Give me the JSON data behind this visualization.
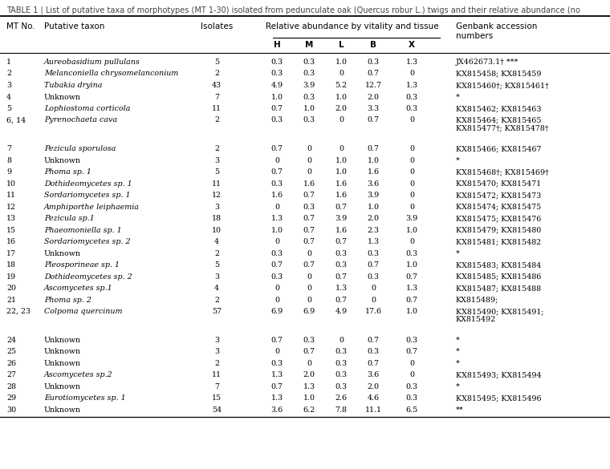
{
  "title": "TABLE 1 | List of putative taxa of morphotypes (MT 1-30) isolated from pedunculate oak (Quercus robur L.) twigs and their relative abundance (no",
  "col_headers_row1": [
    "MT No.",
    "Putative taxon",
    "Isolates",
    "Relative abundance by vitality and tissue",
    "Genbank accession\nnumbers"
  ],
  "col_headers_row2": [
    "H",
    "M",
    "L",
    "B",
    "X"
  ],
  "rows": [
    [
      "1",
      "Aureobasidium pullulans",
      "5",
      "0.3",
      "0.3",
      "1.0",
      "0.3",
      "1.3",
      "JX462673.1† ***"
    ],
    [
      "2",
      "Melanconiella chrysomelanconium",
      "2",
      "0.3",
      "0.3",
      "0",
      "0.7",
      "0",
      "KX815458; KX815459"
    ],
    [
      "3",
      "Tubakia dryina",
      "43",
      "4.9",
      "3.9",
      "5.2",
      "12.7",
      "1.3",
      "KX815460†; KX815461†"
    ],
    [
      "4",
      "Unknown",
      "7",
      "1.0",
      "0.3",
      "1.0",
      "2.0",
      "0.3",
      "*"
    ],
    [
      "5",
      "Lophiostoma corticola",
      "11",
      "0.7",
      "1.0",
      "2.0",
      "3.3",
      "0.3",
      "KX815462; KX815463"
    ],
    [
      "6, 14",
      "Pyrenochaeta cava",
      "2",
      "0.3",
      "0.3",
      "0",
      "0.7",
      "0",
      "KX815464; KX815465\nKX815477†; KX815478†"
    ],
    [
      "7",
      "Pezicula sporulosa",
      "2",
      "0.7",
      "0",
      "0",
      "0.7",
      "0",
      "KX815466; KX815467"
    ],
    [
      "8",
      "Unknown",
      "3",
      "0",
      "0",
      "1.0",
      "1.0",
      "0",
      "*"
    ],
    [
      "9",
      "Phoma sp. 1",
      "5",
      "0.7",
      "0",
      "1.0",
      "1.6",
      "0",
      "KX815468†; KX815469†"
    ],
    [
      "10",
      "Dothideomycetes sp. 1",
      "11",
      "0.3",
      "1.6",
      "1.6",
      "3.6",
      "0",
      "KX815470; KX815471"
    ],
    [
      "11",
      "Sordariomycetes sp. 1",
      "12",
      "1.6",
      "0.7",
      "1.6",
      "3.9",
      "0",
      "KX815472; KX815473"
    ],
    [
      "12",
      "Amphiporthe leiphaemia",
      "3",
      "0",
      "0.3",
      "0.7",
      "1.0",
      "0",
      "KX815474; KX815475"
    ],
    [
      "13",
      "Pezicula sp.1",
      "18",
      "1.3",
      "0.7",
      "3.9",
      "2.0",
      "3.9",
      "KX815475; KX815476"
    ],
    [
      "15",
      "Phaeomoniella sp. 1",
      "10",
      "1.0",
      "0.7",
      "1.6",
      "2.3",
      "1.0",
      "KX815479; KX815480"
    ],
    [
      "16",
      "Sordariomycetes sp. 2",
      "4",
      "0",
      "0.7",
      "0.7",
      "1.3",
      "0",
      "KX815481; KX815482"
    ],
    [
      "17",
      "Unknown",
      "2",
      "0.3",
      "0",
      "0.3",
      "0.3",
      "0.3",
      "*"
    ],
    [
      "18",
      "Pleosporineae sp. 1",
      "5",
      "0.7",
      "0.7",
      "0.3",
      "0.7",
      "1.0",
      "KX815483; KX815484"
    ],
    [
      "19",
      "Dothideomycetes sp. 2",
      "3",
      "0.3",
      "0",
      "0.7",
      "0.3",
      "0.7",
      "KX815485; KX815486"
    ],
    [
      "20",
      "Ascomycetes sp.1",
      "4",
      "0",
      "0",
      "1.3",
      "0",
      "1.3",
      "KX815487; KX815488"
    ],
    [
      "21",
      "Phoma sp. 2",
      "2",
      "0",
      "0",
      "0.7",
      "0",
      "0.7",
      "KX815489;"
    ],
    [
      "22, 23",
      "Colpoma quercinum",
      "57",
      "6.9",
      "6.9",
      "4.9",
      "17.6",
      "1.0",
      "KX815490; KX815491;\nKX815492"
    ],
    [
      "24",
      "Unknown",
      "3",
      "0.7",
      "0.3",
      "0",
      "0.7",
      "0.3",
      "*"
    ],
    [
      "25",
      "Unknown",
      "3",
      "0",
      "0.7",
      "0.3",
      "0.3",
      "0.7",
      "*"
    ],
    [
      "26",
      "Unknown",
      "2",
      "0.3",
      "0",
      "0.3",
      "0.7",
      "0",
      "*"
    ],
    [
      "27",
      "Ascomycetes sp.2",
      "11",
      "1.3",
      "2.0",
      "0.3",
      "3.6",
      "0",
      "KX815493; KX815494"
    ],
    [
      "28",
      "Unknown",
      "7",
      "0.7",
      "1.3",
      "0.3",
      "2.0",
      "0.3",
      "*"
    ],
    [
      "29",
      "Eurotiomycetes sp. 1",
      "15",
      "1.3",
      "1.0",
      "2.6",
      "4.6",
      "0.3",
      "KX815495; KX815496"
    ],
    [
      "30",
      "Unknown",
      "54",
      "3.6",
      "6.2",
      "7.8",
      "11.1",
      "6.5",
      "**"
    ]
  ],
  "italic_taxa": [
    "Aureobasidium pullulans",
    "Melanconiella chrysomelanconium",
    "Tubakia dryina",
    "Lophiostoma corticola",
    "Pyrenochaeta cava",
    "Pezicula sporulosa",
    "Phoma sp. 1",
    "Dothideomycetes sp. 1",
    "Sordariomycetes sp. 1",
    "Amphiporthe leiphaemia",
    "Pezicula sp.1",
    "Phaeomoniella sp. 1",
    "Sordariomycetes sp. 2",
    "Pleosporineae sp. 1",
    "Dothideomycetes sp. 2",
    "Ascomycetes sp.1",
    "Phoma sp. 2",
    "Colpoma quercinum",
    "Ascomycetes sp.2",
    "Eurotiomycetes sp. 1"
  ],
  "bg_color": "#ffffff",
  "text_color": "#000000",
  "line_color": "#000000",
  "font_size": 6.8,
  "header_font_size": 7.5,
  "title_font_size": 7.0
}
